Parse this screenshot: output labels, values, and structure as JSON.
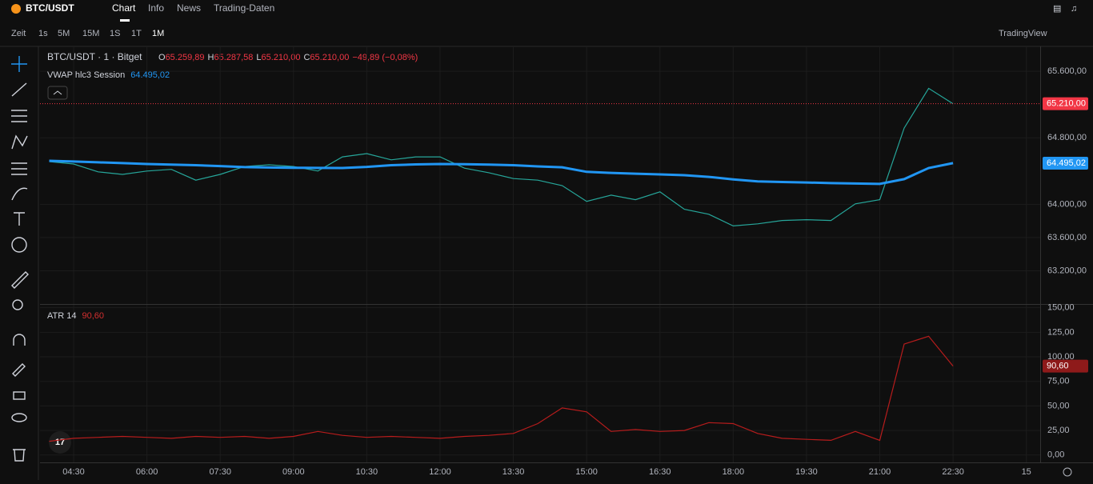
{
  "header": {
    "symbol": "BTC/USDT",
    "tabs": [
      "Chart",
      "Info",
      "News",
      "Trading-Daten"
    ]
  },
  "toolbar": {
    "intervals": [
      "Zeit",
      "1s",
      "5M",
      "15M",
      "1S",
      "1T",
      "1M"
    ],
    "brand": "TradingView"
  },
  "legend": {
    "ohlc": [
      {
        "k": "O",
        "v": "65.259,89"
      },
      {
        "k": "H",
        "v": "65.287,58"
      },
      {
        "k": "L",
        "v": "65.210,00"
      },
      {
        "k": "C",
        "v": "65.210,00"
      }
    ],
    "change": "−49,89 (−0,08%)"
  },
  "chart_data": [
    {
      "type": "line",
      "title": "BTC/USDT · 1 · Bitget",
      "grid": true,
      "categories": [
        null,
        "04:30",
        null,
        null,
        "06:00",
        null,
        null,
        "07:30",
        null,
        null,
        "09:00",
        null,
        null,
        "10:30",
        null,
        null,
        "12:00",
        null,
        null,
        "13:30",
        null,
        null,
        "15:00",
        null,
        null,
        "16:30",
        null,
        null,
        "18:00",
        null,
        null,
        "19:30",
        null,
        null,
        "21:00",
        null,
        null,
        "22:30",
        null,
        null,
        "15"
      ],
      "ylim": [
        62800,
        65900
      ],
      "yticks": [
        {
          "value": 63200,
          "label": "63.200,00"
        },
        {
          "value": 63600,
          "label": "63.600,00"
        },
        {
          "value": 64000,
          "label": "64.000,00"
        },
        {
          "value": 64800,
          "label": "64.800,00"
        },
        {
          "value": 65600,
          "label": "65.600,00"
        }
      ],
      "series": [
        {
          "name": "BTC/USDT",
          "color": "#26a69a",
          "values": [
            64514,
            64485,
            64390,
            64360,
            64400,
            64420,
            64290,
            64360,
            64455,
            64475,
            64455,
            64400,
            64570,
            64610,
            64535,
            64570,
            64570,
            64435,
            64380,
            64310,
            64290,
            64225,
            64035,
            64110,
            64055,
            64150,
            63940,
            63880,
            63740,
            63765,
            63805,
            63815,
            63805,
            64005,
            64055,
            64917,
            65396,
            65210,
            null,
            null,
            null
          ],
          "value_labels": [
            null,
            null,
            null,
            null,
            null,
            null,
            null,
            null,
            null,
            null,
            null,
            null,
            null,
            null,
            null,
            null,
            null,
            null,
            null,
            null,
            null,
            null,
            null,
            null,
            null,
            null,
            null,
            null,
            null,
            null,
            null,
            null,
            null,
            null,
            null,
            null,
            null,
            "65.210,00",
            null,
            null,
            null
          ],
          "badge_color": "#f23645"
        },
        {
          "name": "VWAP hlc3 Session",
          "color": "#2196f3",
          "values": [
            64523,
            64515,
            64505,
            64495,
            64485,
            64478,
            64470,
            64460,
            64447,
            64442,
            64440,
            64438,
            64437,
            64450,
            64470,
            64480,
            64485,
            64482,
            64478,
            64470,
            64456,
            64445,
            64390,
            64378,
            64368,
            64360,
            64350,
            64330,
            64300,
            64275,
            64268,
            64262,
            64255,
            64250,
            64245,
            64303,
            64437,
            64495,
            null,
            null,
            null
          ],
          "value_labels": [
            null,
            null,
            null,
            null,
            null,
            null,
            null,
            null,
            null,
            null,
            null,
            null,
            null,
            null,
            null,
            null,
            null,
            null,
            null,
            null,
            null,
            null,
            null,
            null,
            null,
            null,
            null,
            null,
            null,
            null,
            null,
            null,
            null,
            null,
            null,
            null,
            null,
            "64.495,02",
            null,
            null,
            null
          ],
          "badge_color": "#2196f3"
        }
      ]
    },
    {
      "type": "line",
      "grid": true,
      "ylim": [
        -7.5,
        153
      ],
      "yticks": [
        {
          "value": 0,
          "label": "0,00"
        },
        {
          "value": 25,
          "label": "25,00"
        },
        {
          "value": 50,
          "label": "50,00"
        },
        {
          "value": 75,
          "label": "75,00"
        },
        {
          "value": 100,
          "label": "100,00"
        },
        {
          "value": 125,
          "label": "125,00"
        },
        {
          "value": 150,
          "label": "150,00"
        }
      ],
      "series": [
        {
          "name": "ATR 14",
          "color": "#b71c1c",
          "values": [
            14,
            17,
            18,
            19,
            18,
            17,
            19,
            18,
            19,
            17,
            19,
            24,
            20,
            18,
            19,
            18,
            17,
            19,
            20,
            22,
            32,
            48,
            44,
            24,
            26,
            24,
            25,
            33,
            32,
            22,
            17,
            16,
            15,
            24,
            15,
            113,
            121,
            90.6,
            null,
            null,
            null
          ],
          "value_labels": [
            null,
            null,
            null,
            null,
            null,
            null,
            null,
            null,
            null,
            null,
            null,
            null,
            null,
            null,
            null,
            null,
            null,
            null,
            null,
            null,
            null,
            null,
            null,
            null,
            null,
            null,
            null,
            null,
            null,
            null,
            null,
            null,
            null,
            null,
            null,
            null,
            null,
            "90,60",
            null,
            null,
            null
          ],
          "badge_color": "#8e1a1a"
        }
      ]
    }
  ]
}
